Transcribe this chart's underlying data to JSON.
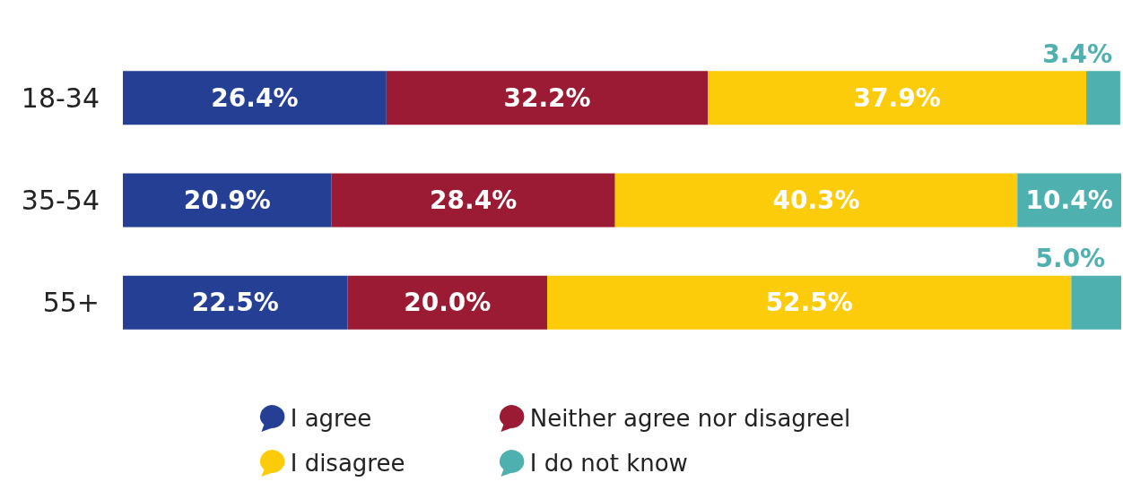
{
  "chart_data": {
    "type": "bar",
    "orientation": "horizontal",
    "stacked": true,
    "legend": "bottom",
    "categories": [
      "18-34",
      "35-54",
      "55+"
    ],
    "series": [
      {
        "name": "I agree",
        "color": "#253f94",
        "values": [
          26.4,
          20.9,
          22.5
        ],
        "value_labels": [
          "26.4%",
          "20.9%",
          "22.5%"
        ]
      },
      {
        "name": "Neither agree nor disagreel",
        "color": "#9a1b33",
        "values": [
          32.2,
          28.4,
          20.0
        ],
        "value_labels": [
          "32.2%",
          "28.4%",
          "20.0%"
        ]
      },
      {
        "name": "I disagree",
        "color": "#fccc0a",
        "values": [
          37.9,
          40.3,
          52.5
        ],
        "value_labels": [
          "37.9%",
          "40.3%",
          "52.5%"
        ]
      },
      {
        "name": "I do not know",
        "color": "#4fb0b0",
        "values": [
          3.4,
          10.4,
          5.0
        ],
        "value_labels": [
          "3.4%",
          "10.4%",
          "5.0%"
        ]
      }
    ]
  }
}
